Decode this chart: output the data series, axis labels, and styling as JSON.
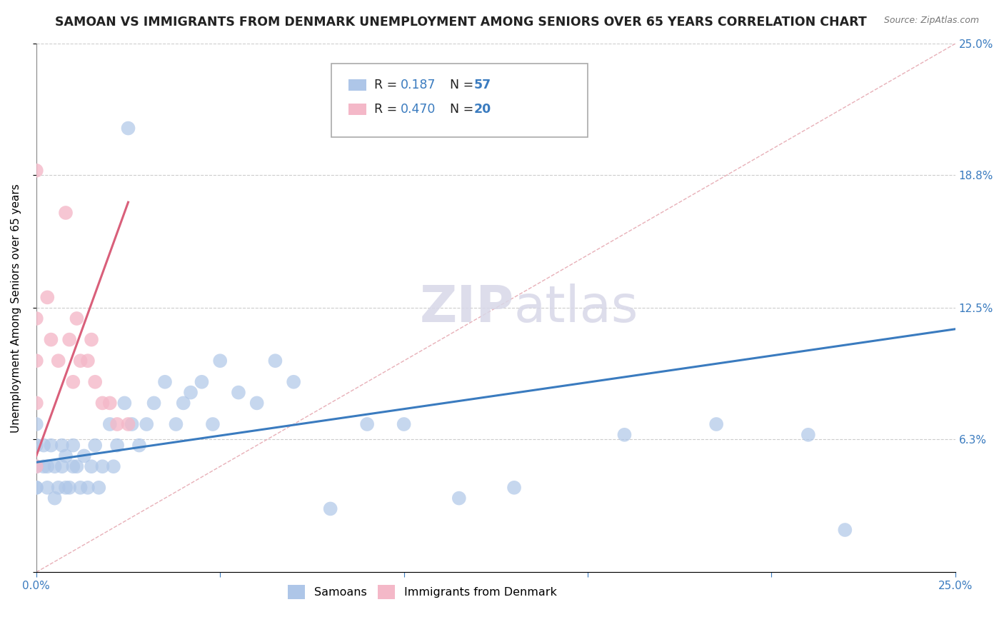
{
  "title": "SAMOAN VS IMMIGRANTS FROM DENMARK UNEMPLOYMENT AMONG SENIORS OVER 65 YEARS CORRELATION CHART",
  "source": "Source: ZipAtlas.com",
  "ylabel": "Unemployment Among Seniors over 65 years",
  "xmin": 0.0,
  "xmax": 0.25,
  "ymin": 0.0,
  "ymax": 0.25,
  "samoans_R": 0.187,
  "samoans_N": 57,
  "denmark_R": 0.47,
  "denmark_N": 20,
  "samoans_color": "#aec6e8",
  "denmark_color": "#f4b8c8",
  "samoans_line_color": "#3a7bbf",
  "denmark_line_color": "#d95f7a",
  "diag_line_color": "#e8b0b8",
  "legend_label_samoans": "Samoans",
  "legend_label_denmark": "Immigrants from Denmark",
  "watermark_zip": "ZIP",
  "watermark_atlas": "atlas",
  "background_color": "#ffffff",
  "grid_color": "#cccccc",
  "title_fontsize": 12.5,
  "axis_label_fontsize": 11,
  "tick_label_fontsize": 11,
  "right_tick_color": "#3a7bbf",
  "samoans_x": [
    0.0,
    0.0,
    0.0,
    0.0,
    0.0,
    0.002,
    0.002,
    0.003,
    0.003,
    0.004,
    0.005,
    0.005,
    0.006,
    0.007,
    0.007,
    0.008,
    0.008,
    0.009,
    0.01,
    0.01,
    0.011,
    0.012,
    0.013,
    0.014,
    0.015,
    0.016,
    0.017,
    0.018,
    0.02,
    0.021,
    0.022,
    0.024,
    0.025,
    0.026,
    0.028,
    0.03,
    0.032,
    0.035,
    0.038,
    0.04,
    0.042,
    0.045,
    0.048,
    0.05,
    0.055,
    0.06,
    0.065,
    0.07,
    0.08,
    0.09,
    0.1,
    0.115,
    0.13,
    0.16,
    0.185,
    0.21,
    0.22
  ],
  "samoans_y": [
    0.04,
    0.05,
    0.06,
    0.07,
    0.04,
    0.05,
    0.06,
    0.04,
    0.05,
    0.06,
    0.035,
    0.05,
    0.04,
    0.05,
    0.06,
    0.04,
    0.055,
    0.04,
    0.05,
    0.06,
    0.05,
    0.04,
    0.055,
    0.04,
    0.05,
    0.06,
    0.04,
    0.05,
    0.07,
    0.05,
    0.06,
    0.08,
    0.21,
    0.07,
    0.06,
    0.07,
    0.08,
    0.09,
    0.07,
    0.08,
    0.085,
    0.09,
    0.07,
    0.1,
    0.085,
    0.08,
    0.1,
    0.09,
    0.03,
    0.07,
    0.07,
    0.035,
    0.04,
    0.065,
    0.07,
    0.065,
    0.02
  ],
  "denmark_x": [
    0.0,
    0.0,
    0.0,
    0.0,
    0.0,
    0.003,
    0.004,
    0.006,
    0.008,
    0.009,
    0.01,
    0.011,
    0.012,
    0.014,
    0.015,
    0.016,
    0.018,
    0.02,
    0.022,
    0.025
  ],
  "denmark_y": [
    0.05,
    0.08,
    0.1,
    0.12,
    0.19,
    0.13,
    0.11,
    0.1,
    0.17,
    0.11,
    0.09,
    0.12,
    0.1,
    0.1,
    0.11,
    0.09,
    0.08,
    0.08,
    0.07,
    0.07
  ],
  "sam_line_x0": 0.0,
  "sam_line_x1": 0.25,
  "sam_line_y0": 0.052,
  "sam_line_y1": 0.115,
  "den_line_x0": 0.0,
  "den_line_x1": 0.025,
  "den_line_y0": 0.055,
  "den_line_y1": 0.175
}
